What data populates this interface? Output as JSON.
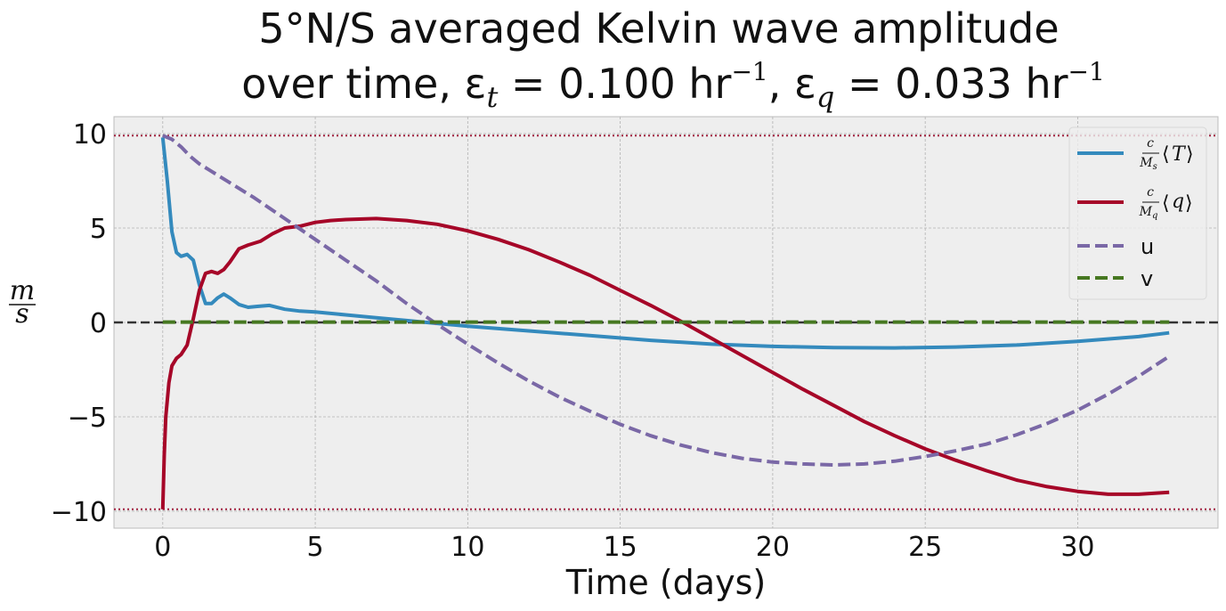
{
  "chart_data": {
    "type": "line",
    "title": {
      "line1": "5°N/S averaged Kelvin wave amplitude",
      "line2_prefix": "over time, ε",
      "line2_sub1": "t",
      "line2_mid": " = 0.100 hr",
      "line2_sup1": "−1",
      "line2_sep": ",  ε",
      "line2_sub2": "q",
      "line2_end": " = 0.033 hr",
      "line2_sup2": "−1"
    },
    "xlabel": "Time (days)",
    "ylabel": {
      "numerator": "m",
      "denominator": "s"
    },
    "xlim": [
      -1.6,
      34.6
    ],
    "ylim": [
      -10.9,
      10.9
    ],
    "xticks": [
      0,
      5,
      10,
      15,
      20,
      25,
      30
    ],
    "yticks": [
      10,
      5,
      0,
      -5,
      -10
    ],
    "ytick_labels": [
      "10",
      "5",
      "0",
      "−5",
      "−10"
    ],
    "grid": true,
    "legend_position": "top-right",
    "reference_lines": [
      {
        "y": 9.9,
        "style": "dotted",
        "color": "#a0213f"
      },
      {
        "y": -9.9,
        "style": "dotted",
        "color": "#a0213f"
      },
      {
        "y": 0,
        "style": "dashed",
        "color": "#333333"
      }
    ],
    "series": [
      {
        "name": "c/M_s ⟨T⟩",
        "legend": {
          "frac_num": "c",
          "frac_den": "M",
          "frac_den_sub": "s",
          "bracket": "T"
        },
        "color": "#348abd",
        "dash": "solid",
        "x": [
          0,
          0.15,
          0.3,
          0.45,
          0.6,
          0.8,
          1.0,
          1.2,
          1.4,
          1.6,
          1.8,
          2.0,
          2.2,
          2.5,
          2.8,
          3.1,
          3.5,
          4.0,
          4.5,
          5,
          6,
          7,
          8,
          9,
          10,
          12,
          14,
          16,
          18,
          20,
          22,
          24,
          26,
          28,
          30,
          32,
          33
        ],
        "y": [
          9.8,
          7.5,
          4.8,
          3.7,
          3.5,
          3.6,
          3.3,
          2.0,
          1.0,
          1.0,
          1.3,
          1.5,
          1.3,
          0.95,
          0.8,
          0.85,
          0.9,
          0.7,
          0.6,
          0.55,
          0.4,
          0.25,
          0.1,
          -0.05,
          -0.2,
          -0.45,
          -0.7,
          -0.95,
          -1.15,
          -1.27,
          -1.33,
          -1.35,
          -1.3,
          -1.2,
          -1.0,
          -0.75,
          -0.55
        ]
      },
      {
        "name": "c/M_q ⟨q⟩",
        "legend": {
          "frac_num": "c",
          "frac_den": "M",
          "frac_den_sub": "q",
          "bracket": "q"
        },
        "color": "#a60628",
        "dash": "solid",
        "x": [
          0,
          0.05,
          0.1,
          0.2,
          0.3,
          0.45,
          0.6,
          0.8,
          1.0,
          1.2,
          1.4,
          1.6,
          1.8,
          2.0,
          2.2,
          2.5,
          2.8,
          3.2,
          3.6,
          4.0,
          4.5,
          5,
          5.5,
          6,
          7,
          8,
          9,
          10,
          11,
          12,
          13,
          14,
          15,
          16,
          17,
          18,
          19,
          20,
          21,
          22,
          23,
          24,
          25,
          26,
          27,
          28,
          29,
          30,
          31,
          32,
          33
        ],
        "y": [
          -9.9,
          -7.0,
          -5.0,
          -3.2,
          -2.3,
          -1.9,
          -1.7,
          -1.2,
          0.2,
          1.7,
          2.6,
          2.7,
          2.6,
          2.8,
          3.2,
          3.9,
          4.1,
          4.3,
          4.7,
          5.0,
          5.1,
          5.3,
          5.4,
          5.45,
          5.5,
          5.4,
          5.2,
          4.85,
          4.4,
          3.85,
          3.2,
          2.5,
          1.7,
          0.9,
          0.05,
          -0.85,
          -1.75,
          -2.65,
          -3.55,
          -4.4,
          -5.25,
          -6.0,
          -6.7,
          -7.3,
          -7.85,
          -8.35,
          -8.7,
          -8.95,
          -9.1,
          -9.1,
          -9.0
        ]
      },
      {
        "name": "u",
        "legend": {
          "text": "u"
        },
        "color": "#7a68a6",
        "dash": "dashed",
        "x": [
          0,
          0.3,
          0.6,
          0.9,
          1.2,
          1.5,
          2,
          3,
          4,
          5,
          6,
          7,
          8,
          9,
          10,
          11,
          12,
          13,
          14,
          15,
          16,
          17,
          18,
          19,
          20,
          21,
          22,
          23,
          24,
          25,
          26,
          27,
          28,
          29,
          30,
          31,
          32,
          33
        ],
        "y": [
          9.9,
          9.7,
          9.3,
          8.8,
          8.4,
          8.1,
          7.6,
          6.6,
          5.5,
          4.4,
          3.3,
          2.2,
          1.0,
          -0.1,
          -1.15,
          -2.15,
          -3.1,
          -3.95,
          -4.7,
          -5.4,
          -6.0,
          -6.5,
          -6.9,
          -7.2,
          -7.4,
          -7.5,
          -7.55,
          -7.5,
          -7.35,
          -7.1,
          -6.8,
          -6.45,
          -5.95,
          -5.35,
          -4.65,
          -3.8,
          -2.85,
          -1.8
        ]
      },
      {
        "name": "v",
        "legend": {
          "text": "v"
        },
        "color": "#467821",
        "dash": "dashed",
        "x": [
          0,
          33
        ],
        "y": [
          0.02,
          0.02
        ]
      }
    ]
  }
}
